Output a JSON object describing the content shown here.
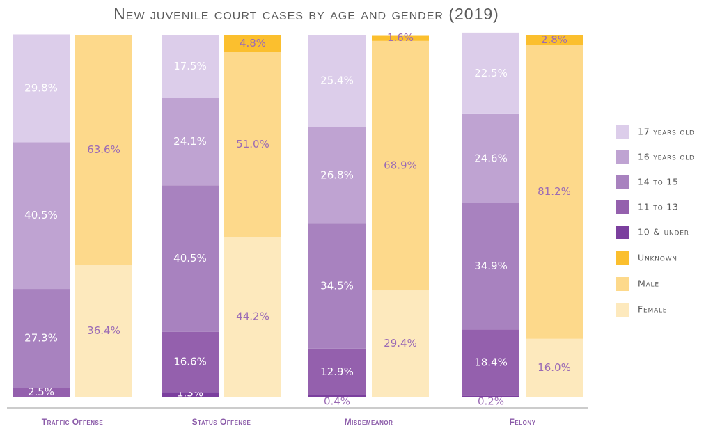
{
  "chart_data": {
    "type": "bar",
    "stacked": true,
    "title": "New juvenile court cases by age and gender (2019)",
    "ylim": [
      0,
      100
    ],
    "legend_position": "right",
    "grid": false,
    "categories": [
      "Traffic Offense",
      "Status Offense",
      "Misdemeanor",
      "Felony"
    ],
    "age_series": [
      {
        "name": "10 & under",
        "color": "#7b3f9e",
        "values": [
          0.0,
          1.3,
          0.4,
          0.2
        ],
        "labels": [
          "",
          "1.3%",
          "0.4%",
          "0.2%"
        ]
      },
      {
        "name": "11 to 13",
        "color": "#9460ad",
        "values": [
          2.5,
          16.6,
          12.9,
          18.4
        ],
        "labels": [
          "2.5%",
          "16.6%",
          "12.9%",
          "18.4%"
        ]
      },
      {
        "name": "14 to 15",
        "color": "#a882bf",
        "values": [
          27.3,
          40.5,
          34.5,
          34.9
        ],
        "labels": [
          "27.3%",
          "40.5%",
          "34.5%",
          "34.9%"
        ]
      },
      {
        "name": "16 years old",
        "color": "#bfa3d2",
        "values": [
          40.5,
          24.1,
          26.8,
          24.6
        ],
        "labels": [
          "40.5%",
          "24.1%",
          "26.8%",
          "24.6%"
        ]
      },
      {
        "name": "17 years old",
        "color": "#dccdea",
        "values": [
          29.8,
          17.5,
          25.4,
          22.5
        ],
        "labels": [
          "29.8%",
          "17.5%",
          "25.4%",
          "22.5%"
        ]
      }
    ],
    "gender_series": [
      {
        "name": "Female",
        "color": "#fde9bd",
        "values": [
          36.4,
          44.2,
          29.4,
          16.0
        ],
        "labels": [
          "36.4%",
          "44.2%",
          "29.4%",
          "16.0%"
        ]
      },
      {
        "name": "Male",
        "color": "#fdd98b",
        "values": [
          63.6,
          51.0,
          68.9,
          81.2
        ],
        "labels": [
          "63.6%",
          "51.0%",
          "68.9%",
          "81.2%"
        ]
      },
      {
        "name": "Unknown",
        "color": "#fbbf2e",
        "values": [
          0.0,
          4.8,
          1.6,
          2.8
        ],
        "labels": [
          "",
          "4.8%",
          "1.6%",
          "2.8%"
        ]
      }
    ],
    "legend": [
      {
        "label": "17 years old",
        "color": "#dccdea"
      },
      {
        "label": "16 years old",
        "color": "#bfa3d2"
      },
      {
        "label": "14 to 15",
        "color": "#a882bf"
      },
      {
        "label": "11 to 13",
        "color": "#9460ad"
      },
      {
        "label": "10 & under",
        "color": "#7b3f9e"
      },
      {
        "label": "Unknown",
        "color": "#fbbf2e"
      },
      {
        "label": "Male",
        "color": "#fdd98b"
      },
      {
        "label": "Female",
        "color": "#fde9bd"
      }
    ],
    "colors": {
      "age_label_text": "#ffffff",
      "gender_label_text": "#9b6bb5",
      "category_text": "#8a5aa8",
      "axis_line": "#bbbbbb"
    }
  }
}
